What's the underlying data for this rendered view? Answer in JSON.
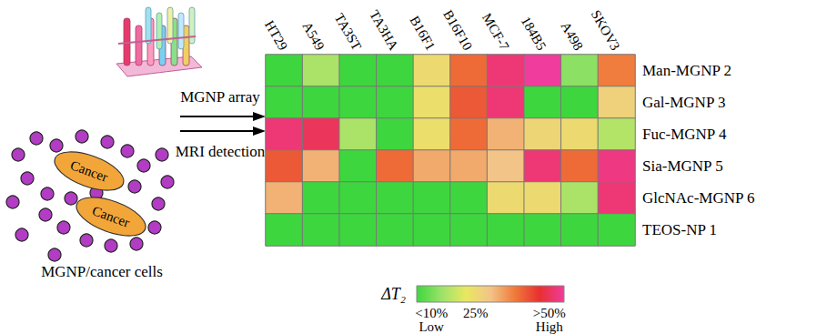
{
  "chart_data": {
    "type": "heatmap",
    "x": [
      "HT29",
      "A549",
      "TA3ST",
      "TA3HA",
      "B16F1",
      "B16F10",
      "MCF-7",
      "184B5",
      "A498",
      "SKOV3"
    ],
    "y": [
      "Man-MGNP 2",
      "Gal-MGNP 3",
      "Fuc-MGNP 4",
      "Sia-MGNP 5",
      "GlcNAc-MGNP 6",
      "TEOS-NP 1"
    ],
    "cells": [
      [
        5,
        15,
        5,
        5,
        25,
        40,
        52,
        55,
        12,
        38
      ],
      [
        5,
        5,
        5,
        5,
        24,
        42,
        52,
        5,
        5,
        27
      ],
      [
        52,
        50,
        15,
        5,
        24,
        40,
        32,
        26,
        25,
        16
      ],
      [
        42,
        32,
        5,
        40,
        33,
        33,
        30,
        52,
        40,
        53
      ],
      [
        32,
        5,
        5,
        5,
        5,
        5,
        25,
        25,
        15,
        52
      ],
      [
        5,
        5,
        5,
        5,
        5,
        5,
        5,
        5,
        5,
        5
      ]
    ],
    "colorbar": {
      "title": "ΔT₂",
      "range": [
        5,
        55
      ],
      "ticks": [
        {
          "value": 10,
          "label": "<10%"
        },
        {
          "value": 25,
          "label": "25%"
        },
        {
          "value": 50,
          "label": ">50%"
        }
      ],
      "tick_notes": [
        {
          "value": 10,
          "label": "Low"
        },
        {
          "value": 50,
          "label": "High"
        }
      ]
    }
  },
  "diagram": {
    "arrow_labels": [
      "MGNP array",
      "MRI detection"
    ],
    "cells": [
      "Cancer",
      "Cancer"
    ],
    "caption": "MGNP/cancer cells"
  }
}
